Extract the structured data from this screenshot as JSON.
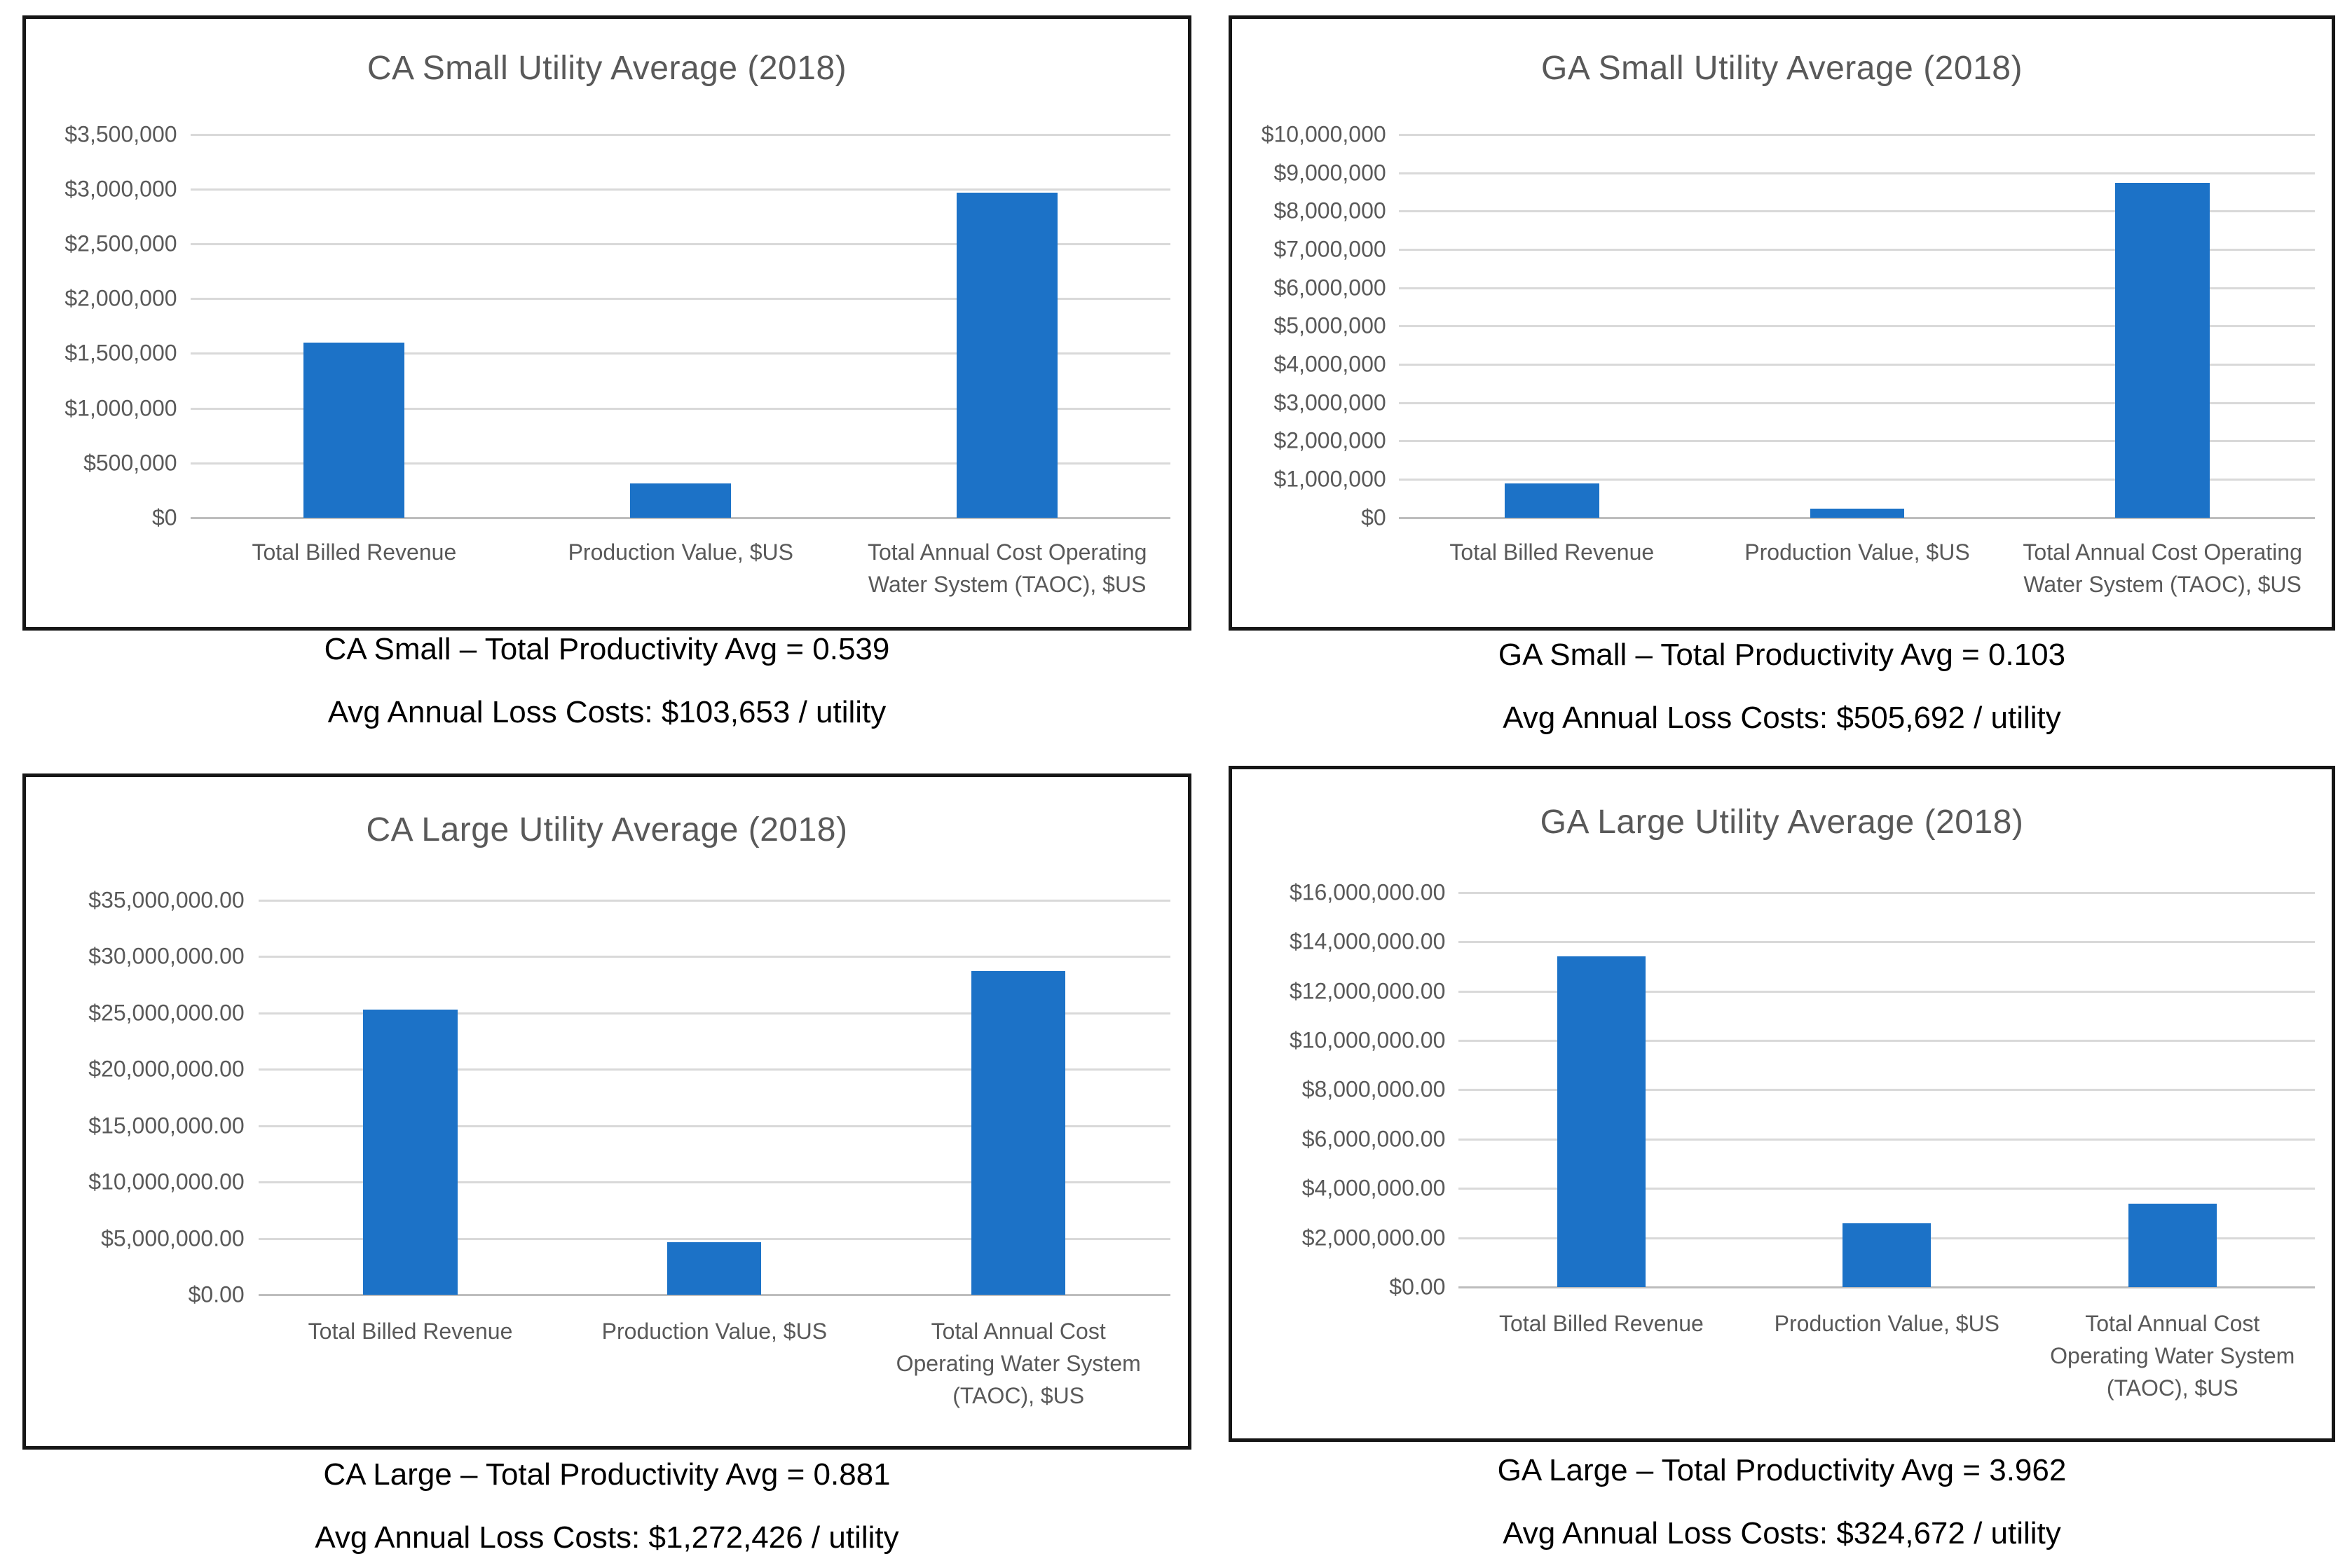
{
  "colors": {
    "bar": "#1C72C7",
    "gridline": "#D9D9D9",
    "zero_line": "#BDBDBD",
    "axis_text": "#595959",
    "title_text": "#595959",
    "caption_text": "#000000",
    "panel_border": "#161616"
  },
  "chart_data": [
    {
      "id": "ca-small",
      "type": "bar",
      "title": "CA Small Utility Average (2018)",
      "categories": [
        [
          "Total Billed Revenue"
        ],
        [
          "Production Value, $US"
        ],
        [
          "Total Annual Cost Operating",
          "Water System (TAOC), $US"
        ]
      ],
      "values": [
        1600000,
        310000,
        2970000
      ],
      "xlabel": "",
      "ylabel": "",
      "ylim": [
        0,
        3500000
      ],
      "ytick_values": [
        0,
        500000,
        1000000,
        1500000,
        2000000,
        2500000,
        3000000,
        3500000
      ],
      "ytick_labels": [
        "$0",
        "$500,000",
        "$1,000,000",
        "$1,500,000",
        "$2,000,000",
        "$2,500,000",
        "$3,000,000",
        "$3,500,000"
      ],
      "grid": true,
      "legend": false,
      "caption_line1": "CA Small – Total Productivity Avg = 0.539",
      "caption_line2": "Avg Annual Loss Costs: $103,653 / utility"
    },
    {
      "id": "ga-small",
      "type": "bar",
      "title": "GA Small Utility Average (2018)",
      "categories": [
        [
          "Total Billed Revenue"
        ],
        [
          "Production Value, $US"
        ],
        [
          "Total Annual Cost Operating",
          "Water System (TAOC), $US"
        ]
      ],
      "values": [
        900000,
        230000,
        8740000
      ],
      "xlabel": "",
      "ylabel": "",
      "ylim": [
        0,
        10000000
      ],
      "ytick_values": [
        0,
        1000000,
        2000000,
        3000000,
        4000000,
        5000000,
        6000000,
        7000000,
        8000000,
        9000000,
        10000000
      ],
      "ytick_labels": [
        "$0",
        "$1,000,000",
        "$2,000,000",
        "$3,000,000",
        "$4,000,000",
        "$5,000,000",
        "$6,000,000",
        "$7,000,000",
        "$8,000,000",
        "$9,000,000",
        "$10,000,000"
      ],
      "grid": true,
      "legend": false,
      "caption_line1": "GA Small – Total Productivity Avg = 0.103",
      "caption_line2": "Avg Annual Loss Costs: $505,692 / utility"
    },
    {
      "id": "ca-large",
      "type": "bar",
      "title": "CA Large Utility Average (2018)",
      "categories": [
        [
          "Total Billed Revenue"
        ],
        [
          "Production Value, $US"
        ],
        [
          "Total Annual Cost",
          "Operating Water System",
          "(TAOC), $US"
        ]
      ],
      "values": [
        25300000,
        4700000,
        28700000
      ],
      "xlabel": "",
      "ylabel": "",
      "ylim": [
        0,
        35000000
      ],
      "ytick_values": [
        0,
        5000000,
        10000000,
        15000000,
        20000000,
        25000000,
        30000000,
        35000000
      ],
      "ytick_labels": [
        "$0.00",
        "$5,000,000.00",
        "$10,000,000.00",
        "$15,000,000.00",
        "$20,000,000.00",
        "$25,000,000.00",
        "$30,000,000.00",
        "$35,000,000.00"
      ],
      "grid": true,
      "legend": false,
      "caption_line1": "CA Large – Total Productivity Avg = 0.881",
      "caption_line2": "Avg Annual Loss Costs: $1,272,426 / utility"
    },
    {
      "id": "ga-large",
      "type": "bar",
      "title": "GA Large Utility Average (2018)",
      "categories": [
        [
          "Total Billed Revenue"
        ],
        [
          "Production Value, $US"
        ],
        [
          "Total Annual Cost",
          "Operating Water System",
          "(TAOC), $US"
        ]
      ],
      "values": [
        13400000,
        2600000,
        3380000
      ],
      "xlabel": "",
      "ylabel": "",
      "ylim": [
        0,
        16000000
      ],
      "ytick_values": [
        0,
        2000000,
        4000000,
        6000000,
        8000000,
        10000000,
        12000000,
        14000000,
        16000000
      ],
      "ytick_labels": [
        "$0.00",
        "$2,000,000.00",
        "$4,000,000.00",
        "$6,000,000.00",
        "$8,000,000.00",
        "$10,000,000.00",
        "$12,000,000.00",
        "$14,000,000.00",
        "$16,000,000.00"
      ],
      "grid": true,
      "legend": false,
      "caption_line1": "GA Large – Total Productivity Avg = 3.962",
      "caption_line2": "Avg Annual Loss Costs: $324,672 / utility"
    }
  ]
}
